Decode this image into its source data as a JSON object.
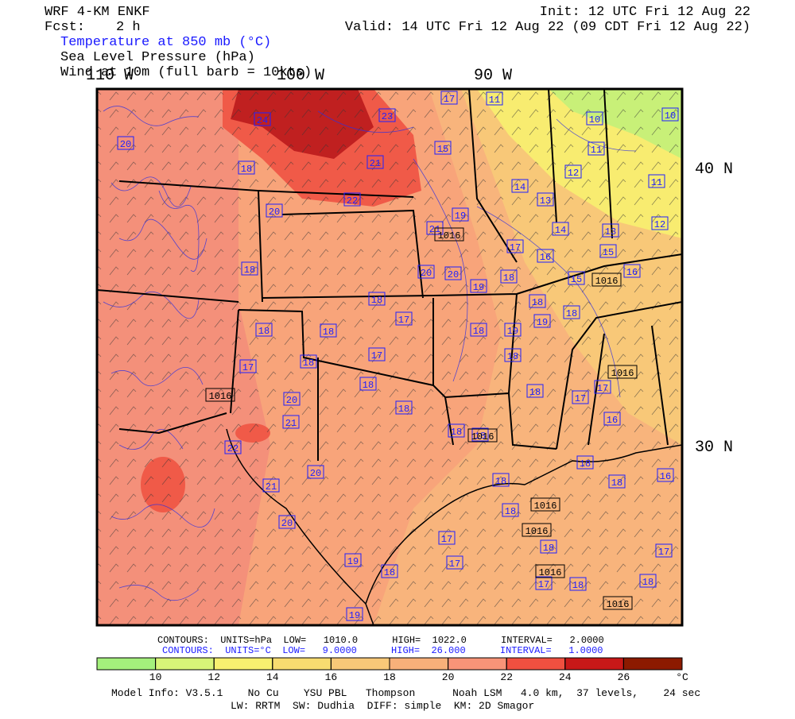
{
  "header": {
    "model": "WRF 4-KM ENKF",
    "fcst_label": "Fcst:",
    "fcst": "2 h",
    "init": "Init: 12 UTC Fri 12 Aug 22",
    "valid": "Valid: 14 UTC Fri 12 Aug 22 (09 CDT Fri 12 Aug 22)",
    "fields": [
      "Temperature at 850 mb (°C)",
      "Sea Level Pressure (hPa)",
      "Wind at 10m (full barb = 10kts)"
    ]
  },
  "map": {
    "lon_labels": [
      "110 W",
      "100 W",
      "90 W"
    ],
    "lat_labels": [
      "40 N",
      "30 N"
    ],
    "temperature_labels": [
      "20",
      "24",
      "23",
      "17",
      "11",
      "10",
      "10",
      "18",
      "15",
      "11",
      "21",
      "12",
      "14",
      "11",
      "22",
      "13",
      "20",
      "19",
      "12",
      "21",
      "14",
      "13",
      "17",
      "16",
      "15",
      "18",
      "20",
      "20",
      "18",
      "19",
      "15",
      "16",
      "18",
      "18",
      "19",
      "18",
      "18",
      "18",
      "17",
      "18",
      "19",
      "18",
      "17",
      "17",
      "18",
      "18",
      "18",
      "17",
      "17",
      "20",
      "18",
      "16",
      "21",
      "18",
      "18",
      "22",
      "20",
      "18",
      "21",
      "18",
      "16",
      "18",
      "18",
      "20",
      "17",
      "18",
      "17",
      "19",
      "17",
      "18",
      "17",
      "18",
      "18",
      "19"
    ],
    "pressure_labels": [
      "1016",
      "1016",
      "1016",
      "1016",
      "1016",
      "1016",
      "1016",
      "1016",
      "1016"
    ]
  },
  "footer": {
    "pressure_contours": "CONTOURS:  UNITS=hPa  LOW=   1010.0      HIGH=  1022.0      INTERVAL=   2.0000",
    "temperature_contours": "CONTOURS:  UNITS=°C  LOW=   9.0000      HIGH=  26.000      INTERVAL=   1.0000",
    "model_info": "Model Info: V3.5.1    No Cu    YSU PBL   Thompson      Noah LSM   4.0 km,  37 levels,    24 sec",
    "physics": "LW: RRTM  SW: Dudhia  DIFF: simple  KM: 2D Smagor"
  },
  "colorbar": {
    "ticks": [
      10,
      12,
      14,
      16,
      18,
      20,
      22,
      24,
      26
    ],
    "unit": "°C",
    "colors": [
      "#a4f07c",
      "#d8f478",
      "#f8f070",
      "#f8dc70",
      "#f8c878",
      "#f8b07a",
      "#f89478",
      "#f05040",
      "#c81818",
      "#8c1a00"
    ]
  }
}
